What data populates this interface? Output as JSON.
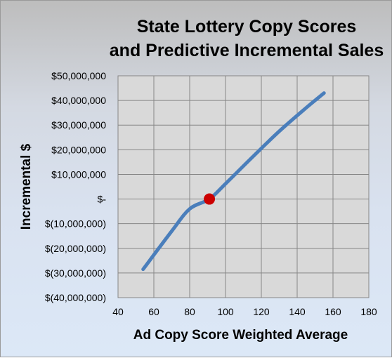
{
  "chart_data": {
    "type": "line",
    "title": [
      "State Lottery Copy Scores",
      "and Predictive Incremental Sales"
    ],
    "xlabel": "Ad Copy Score Weighted Average",
    "ylabel": "Incremental $",
    "xlim": [
      40,
      180
    ],
    "ylim": [
      -40000000,
      50000000
    ],
    "x_ticks": [
      40,
      60,
      80,
      100,
      120,
      140,
      160,
      180
    ],
    "x_tick_labels": [
      "40",
      "60",
      "80",
      "100",
      "120",
      "140",
      "160",
      "180"
    ],
    "y_ticks": [
      50000000,
      40000000,
      30000000,
      20000000,
      10000000,
      0,
      -10000000,
      -20000000,
      -30000000,
      -40000000
    ],
    "y_tick_labels": [
      "$50,000,000",
      "$40,000,000",
      "$30,000,000",
      "$20,000,000",
      "$10,000,000",
      "$-",
      "$(10,000,000)",
      "$(20,000,000)",
      "$(30,000,000)",
      "$(40,000,000)"
    ],
    "grid": true,
    "series": [
      {
        "color": "#4a7ebb",
        "x": [
          54,
          70,
          80,
          91,
          100,
          115,
          130,
          145,
          155
        ],
        "y": [
          -28500000,
          -13000000,
          -4000000,
          0,
          6200000,
          17000000,
          27500000,
          37000000,
          43000000
        ]
      }
    ],
    "highlight_point": {
      "x": 91,
      "y": 0,
      "color": "#cc0000"
    }
  }
}
